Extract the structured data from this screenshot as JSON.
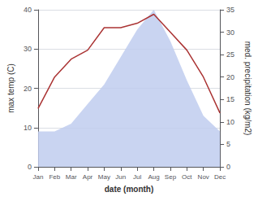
{
  "chart_data": {
    "type": "line",
    "xlabel": "date (month)",
    "ylabel": "max temp (C)",
    "y2label": "med. precipitation (kg/m2)",
    "categories": [
      "Jan",
      "Feb",
      "Mar",
      "Apr",
      "May",
      "Jun",
      "Jul",
      "Aug",
      "Sep",
      "Oct",
      "Nov",
      "Dec"
    ],
    "series": [
      {
        "type": "area",
        "color": "#c0ccee",
        "values": [
          9,
          9,
          11,
          16,
          21,
          28,
          35,
          40,
          32,
          22,
          13,
          9
        ]
      },
      {
        "type": "line",
        "color": "#aa3333",
        "axis": "y2",
        "values": [
          13,
          20,
          24,
          26,
          31,
          31,
          32,
          34,
          30,
          26,
          20,
          12
        ]
      }
    ],
    "ylim": [
      0,
      40
    ],
    "yticks": [
      0,
      10,
      20,
      30,
      40
    ],
    "y2lim": [
      0,
      35
    ],
    "y2ticks": [
      0,
      5,
      10,
      15,
      20,
      25,
      30,
      35
    ],
    "grid": true
  }
}
